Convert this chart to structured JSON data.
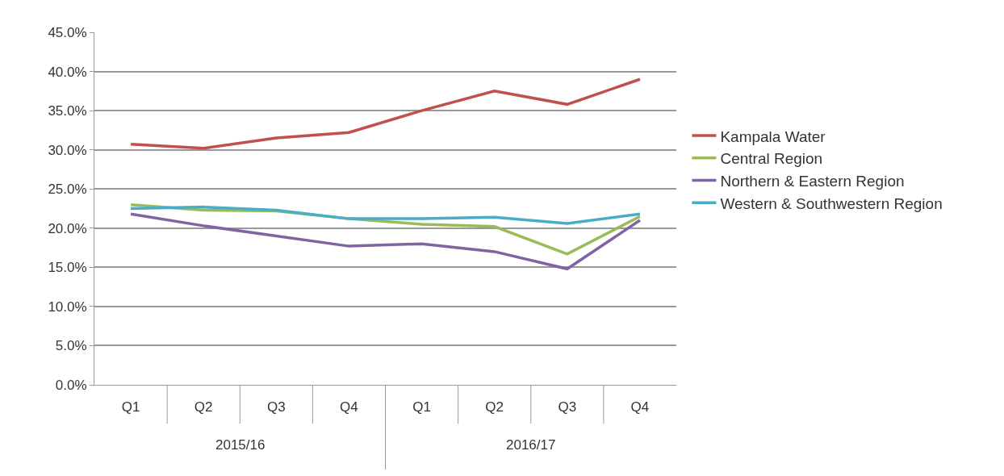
{
  "chart_data": {
    "type": "line",
    "categories": [
      "Q1",
      "Q2",
      "Q3",
      "Q4",
      "Q1",
      "Q2",
      "Q3",
      "Q4"
    ],
    "annotations": [
      "2015/16",
      "2016/17"
    ],
    "series": [
      {
        "name": "Kampala Water",
        "color": "#c0504d",
        "values": [
          30.7,
          30.2,
          31.5,
          32.2,
          35.0,
          37.5,
          35.8,
          39.0
        ]
      },
      {
        "name": "Central Region",
        "color": "#9bbb59",
        "values": [
          23.0,
          22.3,
          22.2,
          21.2,
          20.5,
          20.2,
          16.7,
          21.5
        ]
      },
      {
        "name": "Northern & Eastern Region",
        "color": "#8064a2",
        "values": [
          21.8,
          20.3,
          19.0,
          17.7,
          18.0,
          17.0,
          14.8,
          21.0
        ]
      },
      {
        "name": "Western & Southwestern Region",
        "color": "#4bacc6",
        "values": [
          22.5,
          22.7,
          22.3,
          21.2,
          21.2,
          21.4,
          20.6,
          21.8
        ]
      }
    ],
    "ylim": [
      0,
      45
    ],
    "yticks": [
      {
        "value": 0,
        "label": "0.0%"
      },
      {
        "value": 5,
        "label": "5.0%"
      },
      {
        "value": 10,
        "label": "10.0%"
      },
      {
        "value": 15,
        "label": "15.0%"
      },
      {
        "value": 20,
        "label": "20.0%"
      },
      {
        "value": 25,
        "label": "25.0%"
      },
      {
        "value": 30,
        "label": "30.0%"
      },
      {
        "value": 35,
        "label": "35.0%"
      },
      {
        "value": 40,
        "label": "40.0%"
      },
      {
        "value": 45,
        "label": "45.0%"
      }
    ],
    "grid": "y",
    "legend": "right",
    "marker": "none",
    "line_style": "solid"
  }
}
